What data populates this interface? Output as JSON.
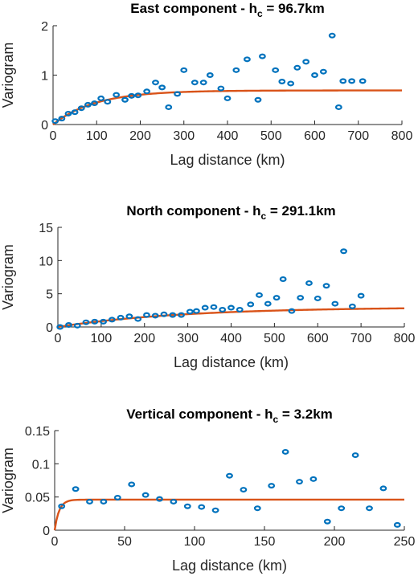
{
  "chart_data": [
    {
      "type": "scatter",
      "title_main": "East component - h",
      "title_sub": "c",
      "title_tail": " = 96.7km",
      "xlabel": "Lag distance (km)",
      "ylabel": "Variogram",
      "xlim": [
        0,
        800
      ],
      "ylim": [
        0,
        2
      ],
      "xticks": [
        "0",
        "100",
        "200",
        "300",
        "400",
        "500",
        "600",
        "700",
        "800"
      ],
      "yticks": [
        "0",
        "1",
        "2"
      ],
      "points_color": "#0072BD",
      "fit_color": "#D95319",
      "series": [
        {
          "x": [
            5,
            20,
            35,
            50,
            65,
            80,
            95,
            110,
            125,
            145,
            165,
            180,
            195,
            215,
            235,
            250,
            265,
            285,
            300,
            325,
            345,
            360,
            385,
            400,
            420,
            445,
            470,
            480,
            510,
            525,
            545,
            560,
            580,
            600,
            620,
            640,
            655,
            665,
            685,
            710
          ],
          "y": [
            0.07,
            0.12,
            0.22,
            0.25,
            0.33,
            0.4,
            0.43,
            0.53,
            0.46,
            0.6,
            0.5,
            0.58,
            0.59,
            0.67,
            0.85,
            0.75,
            0.35,
            0.62,
            1.1,
            0.85,
            0.85,
            1.0,
            0.73,
            0.53,
            1.1,
            1.32,
            0.5,
            1.38,
            1.1,
            0.87,
            0.83,
            1.15,
            1.27,
            1.0,
            1.07,
            1.8,
            0.35,
            0.88,
            0.88,
            0.88
          ]
        }
      ],
      "fit": {
        "sill": 0.69,
        "range_km": 96.7
      }
    },
    {
      "type": "scatter",
      "title_main": "North component - h",
      "title_sub": "c",
      "title_tail": " = 291.1km",
      "xlabel": "Lag distance (km)",
      "ylabel": "Variogram",
      "xlim": [
        0,
        800
      ],
      "ylim": [
        0,
        15
      ],
      "xticks": [
        "0",
        "100",
        "200",
        "300",
        "400",
        "500",
        "600",
        "700",
        "800"
      ],
      "yticks": [
        "0",
        "5",
        "10",
        "15"
      ],
      "points_color": "#0072BD",
      "fit_color": "#D95319",
      "series": [
        {
          "x": [
            5,
            25,
            45,
            65,
            85,
            105,
            125,
            145,
            165,
            185,
            205,
            225,
            245,
            265,
            285,
            305,
            320,
            340,
            360,
            380,
            400,
            420,
            445,
            465,
            485,
            505,
            520,
            540,
            560,
            580,
            600,
            620,
            640,
            660,
            680,
            700
          ],
          "y": [
            0.0,
            0.3,
            0.2,
            0.7,
            0.8,
            0.8,
            1.1,
            1.4,
            1.6,
            1.2,
            1.8,
            1.7,
            1.9,
            1.8,
            1.8,
            2.3,
            2.4,
            2.9,
            3.0,
            2.6,
            2.9,
            2.6,
            3.4,
            4.8,
            3.5,
            4.4,
            7.2,
            2.4,
            4.4,
            6.6,
            4.3,
            6.2,
            3.5,
            11.4,
            3.1,
            4.7
          ]
        }
      ],
      "fit": {
        "sill": 3.0,
        "range_km": 291.1
      }
    },
    {
      "type": "scatter",
      "title_main": "Vertical component - h",
      "title_sub": "c",
      "title_tail": " = 3.2km",
      "xlabel": "Lag distance (km)",
      "ylabel": "Variogram",
      "xlim": [
        0,
        250
      ],
      "ylim": [
        0,
        0.15
      ],
      "xticks": [
        "0",
        "50",
        "100",
        "150",
        "200",
        "250"
      ],
      "yticks": [
        "0",
        "0.05",
        "0.1",
        "0.15"
      ],
      "points_color": "#0072BD",
      "fit_color": "#D95319",
      "series": [
        {
          "x": [
            5,
            15,
            25,
            35,
            45,
            55,
            65,
            75,
            85,
            95,
            105,
            115,
            125,
            135,
            145,
            155,
            165,
            175,
            185,
            195,
            205,
            215,
            225,
            235,
            245
          ],
          "y": [
            0.036,
            0.062,
            0.043,
            0.043,
            0.049,
            0.069,
            0.053,
            0.047,
            0.043,
            0.036,
            0.035,
            0.03,
            0.082,
            0.061,
            0.033,
            0.067,
            0.118,
            0.073,
            0.077,
            0.013,
            0.033,
            0.113,
            0.033,
            0.063,
            0.008
          ]
        }
      ],
      "fit": {
        "sill": 0.046,
        "range_km": 3.2
      }
    }
  ]
}
